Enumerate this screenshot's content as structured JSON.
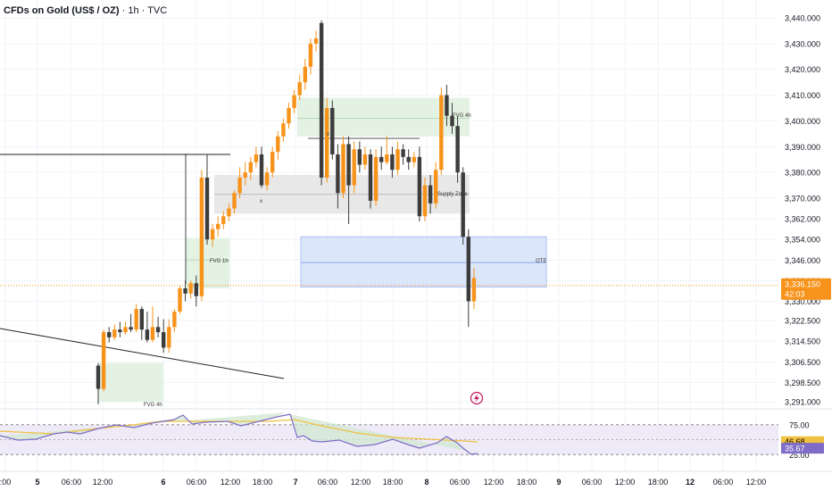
{
  "header": {
    "title": "CFDs on Gold (US$ / OZ)",
    "interval": "1h",
    "source": "TVC"
  },
  "colors": {
    "up": "#f7931a",
    "down": "#3c3c3c",
    "fvg_fill": "#e3f2e3",
    "supply_fill": "#e8e8e8",
    "ote_fill": "#dbe6fb",
    "rsi": "#7e6cc6",
    "rsi_ma": "#f0c040",
    "price_label": "#f7931a"
  },
  "price_axis": {
    "ticks": [
      "3,440.000",
      "3,430.000",
      "3,420.000",
      "3,410.000",
      "3,400.000",
      "3,390.000",
      "3,380.000",
      "3,370.000",
      "3,362.000",
      "3,354.000",
      "3,346.000",
      "3,338.000",
      "3,330.000",
      "3,322.500",
      "3,314.500",
      "3,306.500",
      "3,298.500",
      "3,291.000"
    ],
    "tick_values": [
      3440,
      3430,
      3420,
      3410,
      3400,
      3390,
      3380,
      3370,
      3362,
      3354,
      3346,
      3338,
      3330,
      3322.5,
      3314.5,
      3306.5,
      3298.5,
      3291
    ]
  },
  "current_price": {
    "value": "3,336.150",
    "countdown": "42:03",
    "raw": 3336.15
  },
  "time_axis": {
    "labels": [
      ":00",
      "5",
      "06:00",
      "12:00",
      "6",
      "06:00",
      "12:00",
      "18:00",
      "7",
      "06:00",
      "12:00",
      "18:00",
      "8",
      "06:00",
      "12:00",
      "18:00",
      "9",
      "06:00",
      "12:00",
      "18:00",
      "12",
      "06:00",
      "12:00"
    ],
    "bold": [
      false,
      true,
      false,
      false,
      true,
      false,
      false,
      false,
      true,
      false,
      false,
      false,
      true,
      false,
      false,
      false,
      true,
      false,
      false,
      false,
      true,
      false,
      false
    ]
  },
  "annotations": {
    "fvg_4h_low": "FVG 4h",
    "fvg_1h": "FVG 1h",
    "fvg_4h_high": "FVG 4h",
    "supply_zone": "Supply Zone",
    "ote": "OTE",
    "x_mark_1": "x",
    "x_mark_2": "x"
  },
  "rsi_panel": {
    "levels": [
      "75.00",
      "25.00"
    ],
    "level_values": [
      75,
      25
    ],
    "rsi_value": "35.67",
    "rsi_ma_value": "46.68",
    "rsi_raw": 35.67,
    "ma_raw": 46.68
  },
  "chart_data": {
    "type": "candlestick",
    "title": "CFDs on Gold (US$ / OZ) · 1h · TVC",
    "ylim": [
      3288,
      3444
    ],
    "candles": [
      [
        3305,
        3296,
        3306,
        3290
      ],
      [
        3296,
        3318,
        3319,
        3295
      ],
      [
        3318,
        3316,
        3320,
        3314
      ],
      [
        3316,
        3319,
        3321,
        3315
      ],
      [
        3319,
        3318,
        3322,
        3316
      ],
      [
        3318,
        3320,
        3322,
        3317
      ],
      [
        3320,
        3319,
        3325,
        3318
      ],
      [
        3319,
        3327,
        3329,
        3318
      ],
      [
        3327,
        3319,
        3328,
        3315
      ],
      [
        3319,
        3315,
        3326,
        3314
      ],
      [
        3315,
        3320,
        3328,
        3314
      ],
      [
        3320,
        3318,
        3324,
        3316
      ],
      [
        3318,
        3312,
        3323,
        3310
      ],
      [
        3312,
        3320,
        3323,
        3310
      ],
      [
        3320,
        3326,
        3327,
        3318
      ],
      [
        3326,
        3335,
        3336,
        3325
      ],
      [
        3335,
        3333,
        3338,
        3330
      ],
      [
        3333,
        3337,
        3338,
        3331
      ],
      [
        3337,
        3332,
        3340,
        3328
      ],
      [
        3332,
        3378,
        3381,
        3330
      ],
      [
        3378,
        3354,
        3387,
        3352
      ],
      [
        3354,
        3358,
        3360,
        3351
      ],
      [
        3358,
        3360,
        3363,
        3355
      ],
      [
        3360,
        3363,
        3365,
        3358
      ],
      [
        3363,
        3366,
        3368,
        3361
      ],
      [
        3366,
        3372,
        3373,
        3364
      ],
      [
        3372,
        3378,
        3382,
        3370
      ],
      [
        3378,
        3380,
        3384,
        3375
      ],
      [
        3380,
        3384,
        3386,
        3377
      ],
      [
        3384,
        3387,
        3390,
        3382
      ],
      [
        3387,
        3375,
        3390,
        3374
      ],
      [
        3375,
        3380,
        3382,
        3373
      ],
      [
        3380,
        3388,
        3390,
        3378
      ],
      [
        3388,
        3394,
        3396,
        3385
      ],
      [
        3394,
        3399,
        3401,
        3392
      ],
      [
        3399,
        3405,
        3407,
        3397
      ],
      [
        3405,
        3410,
        3412,
        3403
      ],
      [
        3410,
        3415,
        3418,
        3408
      ],
      [
        3415,
        3421,
        3424,
        3412
      ],
      [
        3421,
        3430,
        3432,
        3418
      ],
      [
        3430,
        3432,
        3435,
        3427
      ],
      [
        3438,
        3378,
        3439,
        3375
      ],
      [
        3378,
        3405,
        3409,
        3376
      ],
      [
        3405,
        3387,
        3408,
        3385
      ],
      [
        3387,
        3372,
        3391,
        3366
      ],
      [
        3372,
        3391,
        3394,
        3370
      ],
      [
        3391,
        3375,
        3394,
        3360
      ],
      [
        3375,
        3389,
        3392,
        3372
      ],
      [
        3389,
        3383,
        3392,
        3380
      ],
      [
        3383,
        3387,
        3390,
        3381
      ],
      [
        3387,
        3369,
        3389,
        3366
      ],
      [
        3369,
        3386,
        3389,
        3367
      ],
      [
        3386,
        3384,
        3390,
        3381
      ],
      [
        3384,
        3387,
        3394,
        3383
      ],
      [
        3387,
        3381,
        3390,
        3378
      ],
      [
        3381,
        3389,
        3392,
        3379
      ],
      [
        3389,
        3386,
        3391,
        3383
      ],
      [
        3386,
        3384,
        3389,
        3381
      ],
      [
        3384,
        3386,
        3388,
        3382
      ],
      [
        3386,
        3363,
        3390,
        3361
      ],
      [
        3363,
        3375,
        3378,
        3361
      ],
      [
        3375,
        3368,
        3379,
        3364
      ],
      [
        3368,
        3381,
        3384,
        3366
      ],
      [
        3381,
        3410,
        3413,
        3379
      ],
      [
        3410,
        3402,
        3414,
        3398
      ],
      [
        3402,
        3398,
        3407,
        3395
      ],
      [
        3398,
        3380,
        3402,
        3376
      ],
      [
        3380,
        3355,
        3382,
        3352
      ],
      [
        3355,
        3330,
        3358,
        3320
      ],
      [
        3330,
        3339,
        3343,
        3327
      ]
    ],
    "series": [
      {
        "name": "RSI",
        "values": []
      },
      {
        "name": "RSI MA",
        "values": []
      }
    ]
  }
}
